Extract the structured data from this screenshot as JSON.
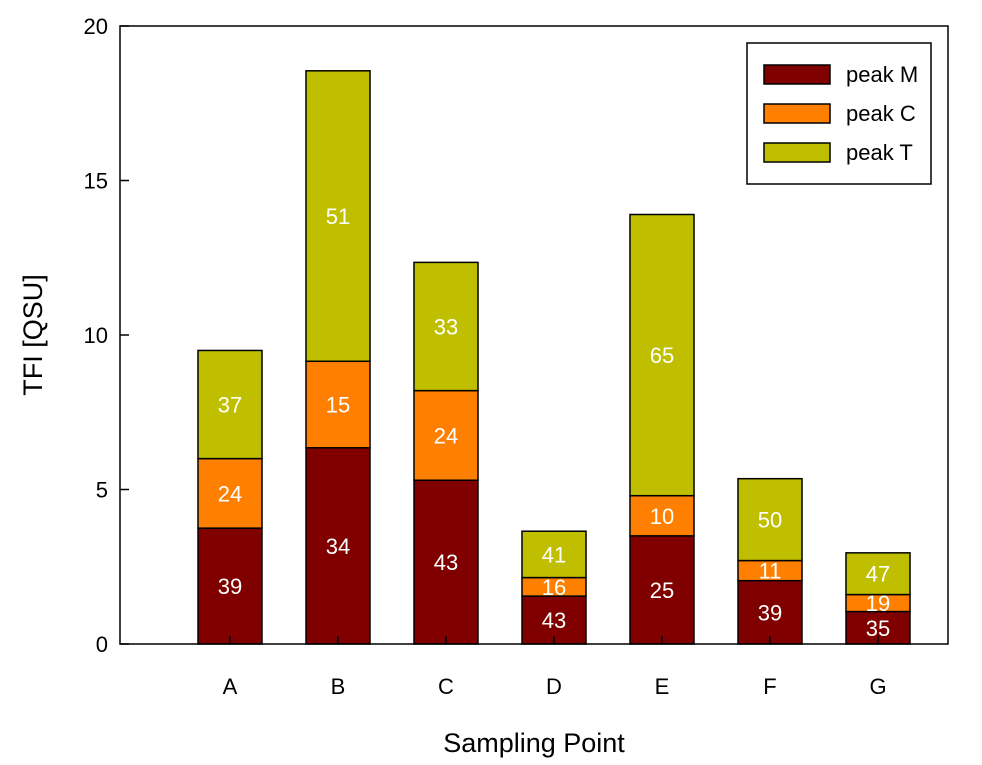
{
  "chart_data": {
    "type": "bar",
    "stacked": true,
    "categories": [
      "A",
      "B",
      "C",
      "D",
      "E",
      "F",
      "G"
    ],
    "series": [
      {
        "name": "peak M",
        "color": "#800000",
        "values": [
          3.75,
          6.35,
          5.3,
          1.55,
          3.5,
          2.05,
          1.05
        ],
        "labels": [
          "39",
          "34",
          "43",
          "43",
          "25",
          "39",
          "35"
        ]
      },
      {
        "name": "peak C",
        "color": "#ff8000",
        "values": [
          2.25,
          2.8,
          2.9,
          0.6,
          1.3,
          0.65,
          0.55
        ],
        "labels": [
          "24",
          "15",
          "24",
          "16",
          "10",
          "11",
          "19"
        ]
      },
      {
        "name": "peak T",
        "color": "#bfbf00",
        "values": [
          3.5,
          9.4,
          4.15,
          1.5,
          9.1,
          2.65,
          1.35
        ],
        "labels": [
          "37",
          "51",
          "33",
          "41",
          "65",
          "50",
          "47"
        ]
      }
    ],
    "xlabel": "Sampling Point",
    "ylabel": "TFI [QSU]",
    "ylim": [
      0,
      20
    ],
    "yticks": [
      0,
      5,
      10,
      15,
      20
    ],
    "grid": false,
    "legend_position": "top-right"
  }
}
